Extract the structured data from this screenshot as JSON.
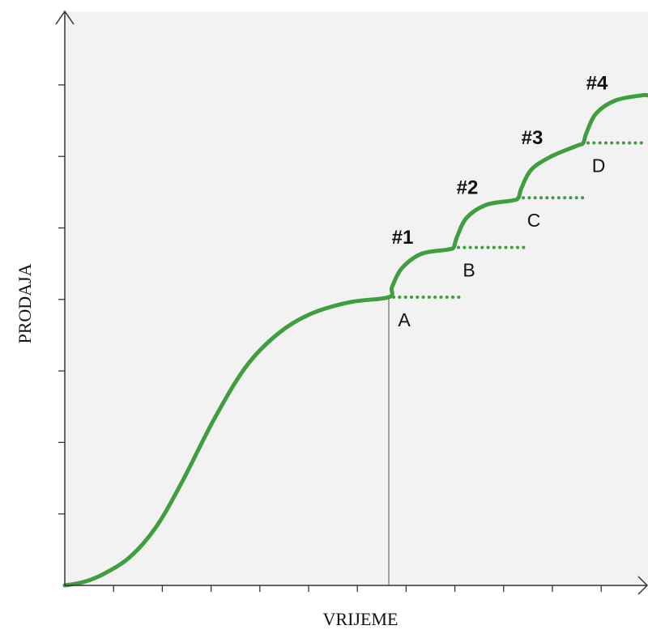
{
  "chart_data": {
    "type": "line",
    "xlabel": "VRIJEME",
    "ylabel": "PRODAJA",
    "x_ticks": 12,
    "y_ticks": 7,
    "colors": {
      "background": "#f2f2f2",
      "curve": "#3f9e3f",
      "dots": "#3f9e3f",
      "axis": "#333333",
      "text": "#111111"
    },
    "series": [
      {
        "values": [
          [
            0.0,
            0.0
          ],
          [
            0.3,
            0.05
          ],
          [
            0.6,
            0.16
          ],
          [
            1.0,
            0.39
          ],
          [
            1.4,
            0.8
          ],
          [
            1.8,
            1.42
          ],
          [
            2.3,
            2.3
          ],
          [
            2.8,
            3.04
          ],
          [
            3.3,
            3.5
          ],
          [
            3.8,
            3.77
          ],
          [
            4.4,
            3.93
          ],
          [
            5.0,
            4.0
          ],
          [
            5.05,
            4.14
          ],
          [
            5.2,
            4.4
          ],
          [
            5.5,
            4.6
          ],
          [
            5.9,
            4.66
          ],
          [
            6.0,
            4.69
          ],
          [
            6.05,
            4.83
          ],
          [
            6.2,
            5.1
          ],
          [
            6.5,
            5.28
          ],
          [
            6.9,
            5.34
          ],
          [
            7.0,
            5.38
          ],
          [
            7.05,
            5.52
          ],
          [
            7.2,
            5.77
          ],
          [
            7.5,
            5.95
          ],
          [
            7.9,
            6.1
          ],
          [
            8.0,
            6.14
          ],
          [
            8.05,
            6.28
          ],
          [
            8.2,
            6.55
          ],
          [
            8.5,
            6.73
          ],
          [
            8.9,
            6.8
          ],
          [
            9.0,
            6.8
          ]
        ]
      }
    ],
    "launches": [
      {
        "label": "#1",
        "point": "A",
        "x": 5.0,
        "y": 4.0,
        "dots_to": 6.1
      },
      {
        "label": "#2",
        "point": "B",
        "x": 6.0,
        "y": 4.69,
        "dots_to": 7.1
      },
      {
        "label": "#3",
        "point": "C",
        "x": 7.0,
        "y": 5.38,
        "dots_to": 8.0
      },
      {
        "label": "#4",
        "point": "D",
        "x": 8.0,
        "y": 6.14,
        "dots_to": 9.0
      }
    ],
    "xlim": [
      0,
      9
    ],
    "ylim": [
      0,
      7
    ]
  }
}
